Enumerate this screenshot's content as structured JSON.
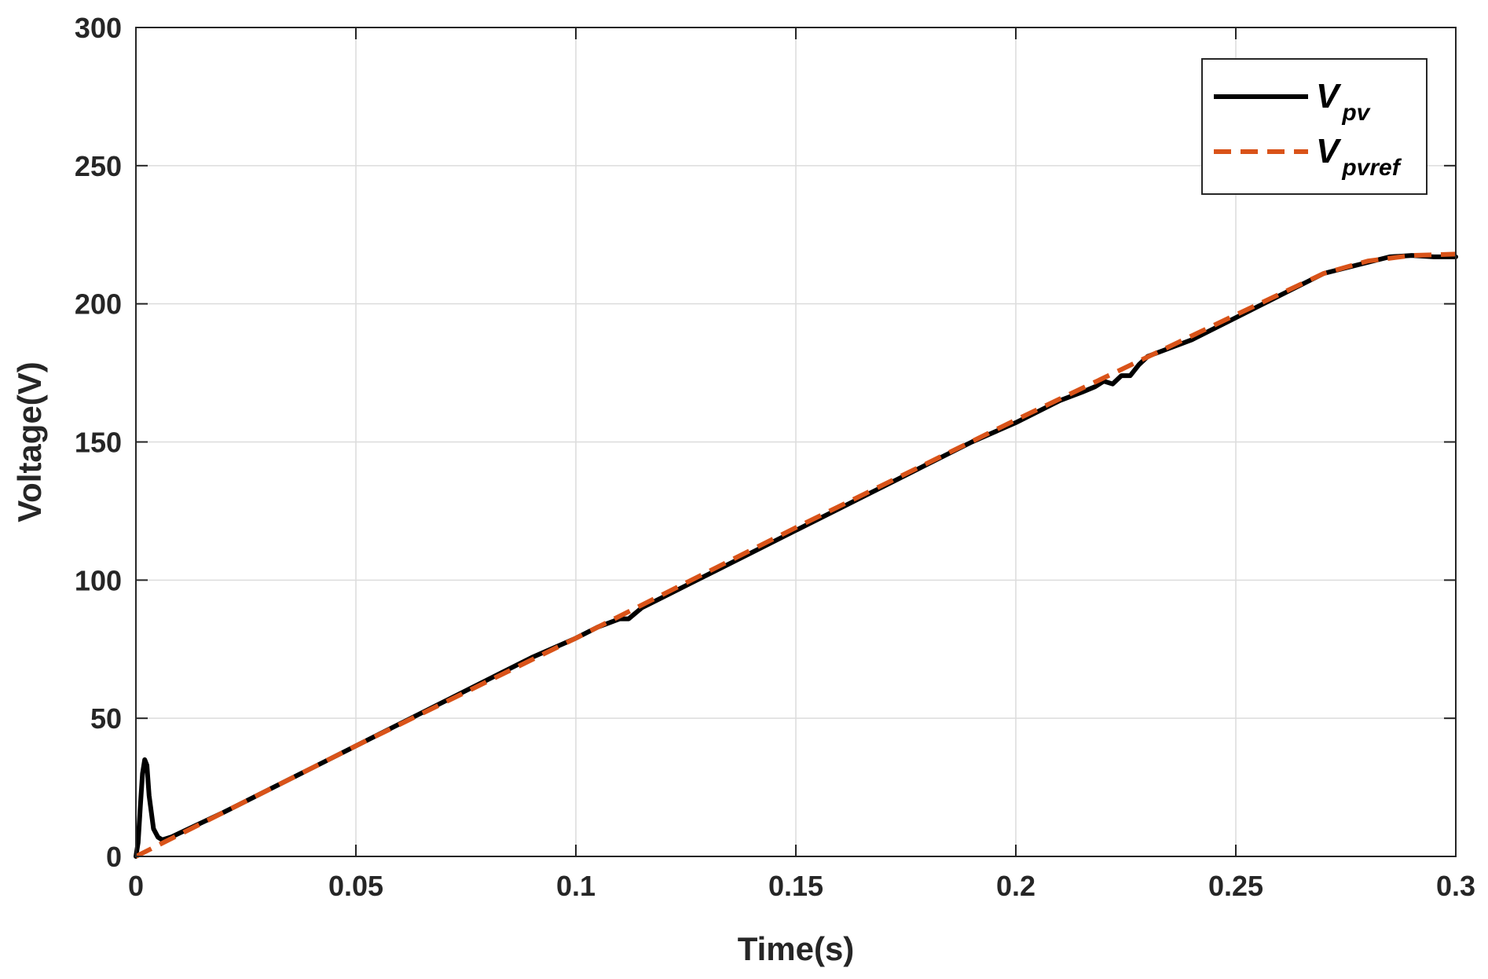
{
  "chart_data": {
    "type": "line",
    "title": "",
    "xlabel": "Time(s)",
    "ylabel": "Voltage(V)",
    "xlim": [
      0,
      0.3
    ],
    "ylim": [
      0,
      300
    ],
    "xticks": [
      0,
      0.05,
      0.1,
      0.15,
      0.2,
      0.25,
      0.3
    ],
    "xtick_labels": [
      "0",
      "0.05",
      "0.1",
      "0.15",
      "0.2",
      "0.25",
      "0.3"
    ],
    "yticks": [
      0,
      50,
      100,
      150,
      200,
      250,
      300
    ],
    "ytick_labels": [
      "0",
      "50",
      "100",
      "150",
      "200",
      "250",
      "300"
    ],
    "grid": true,
    "legend_position": "top-right",
    "series": [
      {
        "name": "V_pv",
        "label_main": "V",
        "label_sub": "pv",
        "color": "#000000",
        "style": "solid",
        "x": [
          0,
          0.0005,
          0.001,
          0.0015,
          0.002,
          0.0025,
          0.003,
          0.004,
          0.005,
          0.006,
          0.008,
          0.01,
          0.02,
          0.03,
          0.04,
          0.05,
          0.06,
          0.07,
          0.08,
          0.09,
          0.1,
          0.105,
          0.11,
          0.112,
          0.115,
          0.12,
          0.13,
          0.14,
          0.15,
          0.16,
          0.17,
          0.18,
          0.19,
          0.2,
          0.21,
          0.215,
          0.218,
          0.22,
          0.222,
          0.224,
          0.226,
          0.228,
          0.23,
          0.24,
          0.25,
          0.26,
          0.27,
          0.28,
          0.285,
          0.29,
          0.295,
          0.3
        ],
        "y": [
          0,
          5,
          18,
          30,
          35,
          33,
          22,
          10,
          7,
          6,
          7,
          8.5,
          16,
          24,
          32,
          40,
          48,
          56,
          64,
          72,
          79,
          83,
          86,
          86,
          90,
          94,
          102,
          110,
          118,
          126,
          134,
          142,
          150,
          157,
          165,
          168,
          170,
          172,
          171,
          174,
          174,
          178,
          181,
          187,
          195,
          203,
          211,
          215,
          217,
          217.5,
          217,
          217
        ]
      },
      {
        "name": "V_pvref",
        "label_main": "V",
        "label_sub": "pvref",
        "color": "#D95319",
        "style": "dashed",
        "x": [
          0,
          0.05,
          0.1,
          0.15,
          0.2,
          0.25,
          0.27,
          0.28,
          0.29,
          0.3
        ],
        "y": [
          0,
          40,
          79,
          119,
          158,
          196,
          211,
          215.5,
          217.5,
          218
        ]
      }
    ]
  }
}
